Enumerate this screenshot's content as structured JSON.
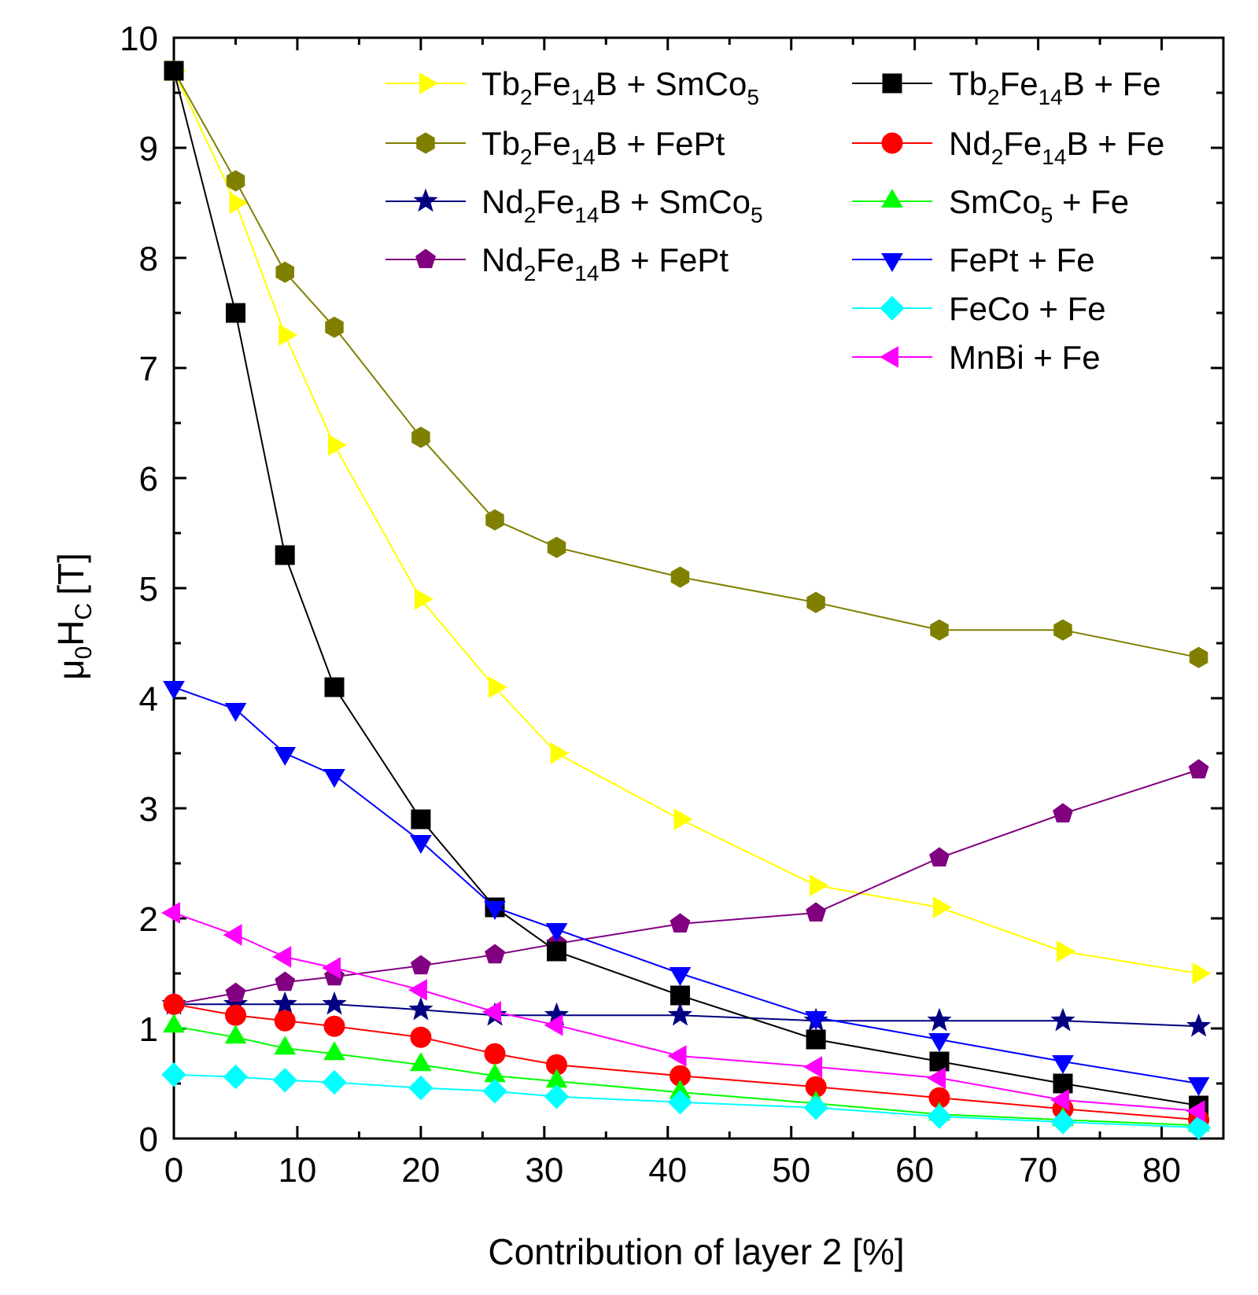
{
  "chart_data": {
    "type": "line",
    "title": "",
    "xlabel": "Contribution of layer 2 [%]",
    "ylabel": {
      "mu": "μ",
      "sub0": "0",
      "H": "H",
      "subC": "C",
      "unit": "[T]"
    },
    "xlim": [
      0,
      85
    ],
    "ylim": [
      0,
      10
    ],
    "x_ticks": [
      0,
      10,
      20,
      30,
      40,
      50,
      60,
      70,
      80
    ],
    "y_ticks": [
      0,
      1,
      2,
      3,
      4,
      5,
      6,
      7,
      8,
      9,
      10
    ],
    "grid": false,
    "legend_position": "top-right",
    "x": [
      0,
      5,
      9,
      13,
      20,
      26,
      31,
      41,
      52,
      62,
      72,
      83
    ],
    "series": [
      {
        "name": "Tb2Fe14B + SmCo5",
        "label_parts": [
          [
            "Tb",
            ""
          ],
          [
            "2",
            "sub"
          ],
          [
            "Fe",
            ""
          ],
          [
            "14",
            "sub"
          ],
          [
            "B + SmCo",
            ""
          ],
          [
            "5",
            "sub"
          ]
        ],
        "color": "#ffff00",
        "marker": "triangle-right",
        "values": [
          9.7,
          8.5,
          7.3,
          6.3,
          4.9,
          4.1,
          3.5,
          2.9,
          2.3,
          2.1,
          1.7,
          1.5
        ]
      },
      {
        "name": "Tb2Fe14B + FePt",
        "label_parts": [
          [
            "Tb",
            ""
          ],
          [
            "2",
            "sub"
          ],
          [
            "Fe",
            ""
          ],
          [
            "14",
            "sub"
          ],
          [
            "B + FePt",
            ""
          ]
        ],
        "color": "#808000",
        "marker": "hexagon",
        "values": [
          9.7,
          8.7,
          7.87,
          7.37,
          6.37,
          5.62,
          5.37,
          5.1,
          4.87,
          4.62,
          4.62,
          4.37
        ]
      },
      {
        "name": "Nd2Fe14B + SmCo5",
        "label_parts": [
          [
            "Nd",
            ""
          ],
          [
            "2",
            "sub"
          ],
          [
            "Fe",
            ""
          ],
          [
            "14",
            "sub"
          ],
          [
            "B + SmCo",
            ""
          ],
          [
            "5",
            "sub"
          ]
        ],
        "color": "#000080",
        "marker": "star",
        "values": [
          1.22,
          1.22,
          1.22,
          1.22,
          1.17,
          1.12,
          1.12,
          1.12,
          1.07,
          1.07,
          1.07,
          1.02
        ]
      },
      {
        "name": "Nd2Fe14B + FePt",
        "label_parts": [
          [
            "Nd",
            ""
          ],
          [
            "2",
            "sub"
          ],
          [
            "Fe",
            ""
          ],
          [
            "14",
            "sub"
          ],
          [
            "B + FePt",
            ""
          ]
        ],
        "color": "#800080",
        "marker": "pentagon",
        "values": [
          1.22,
          1.32,
          1.42,
          1.47,
          1.57,
          1.67,
          1.77,
          1.95,
          2.05,
          2.55,
          2.95,
          3.35
        ]
      },
      {
        "name": "Tb2Fe14B + Fe",
        "label_parts": [
          [
            "Tb",
            ""
          ],
          [
            "2",
            "sub"
          ],
          [
            "Fe",
            ""
          ],
          [
            "14",
            "sub"
          ],
          [
            "B + Fe",
            ""
          ]
        ],
        "color": "#000000",
        "marker": "square",
        "values": [
          9.7,
          7.5,
          5.3,
          4.1,
          2.9,
          2.1,
          1.7,
          1.3,
          0.9,
          0.7,
          0.5,
          0.3
        ]
      },
      {
        "name": "Nd2Fe14B + Fe",
        "label_parts": [
          [
            "Nd",
            ""
          ],
          [
            "2",
            "sub"
          ],
          [
            "Fe",
            ""
          ],
          [
            "14",
            "sub"
          ],
          [
            "B + Fe",
            ""
          ]
        ],
        "color": "#ff0000",
        "marker": "circle",
        "values": [
          1.22,
          1.12,
          1.07,
          1.02,
          0.92,
          0.77,
          0.67,
          0.57,
          0.47,
          0.37,
          0.27,
          0.17
        ]
      },
      {
        "name": "SmCo5 + Fe",
        "label_parts": [
          [
            "SmCo",
            ""
          ],
          [
            "5",
            "sub"
          ],
          [
            " + Fe",
            ""
          ]
        ],
        "color": "#00ff00",
        "marker": "triangle-up",
        "values": [
          1.02,
          0.92,
          0.82,
          0.77,
          0.67,
          0.57,
          0.52,
          0.42,
          0.32,
          0.22,
          0.17,
          0.12
        ]
      },
      {
        "name": "FePt + Fe",
        "label_parts": [
          [
            "FePt + Fe",
            ""
          ]
        ],
        "color": "#0000ff",
        "marker": "triangle-down",
        "values": [
          4.1,
          3.9,
          3.5,
          3.3,
          2.7,
          2.1,
          1.9,
          1.5,
          1.1,
          0.9,
          0.7,
          0.5
        ]
      },
      {
        "name": "FeCo + Fe",
        "label_parts": [
          [
            "FeCo + Fe",
            ""
          ]
        ],
        "color": "#00ffff",
        "marker": "diamond",
        "values": [
          0.58,
          0.56,
          0.53,
          0.51,
          0.46,
          0.43,
          0.38,
          0.33,
          0.28,
          0.2,
          0.15,
          0.1
        ]
      },
      {
        "name": "MnBi + Fe",
        "label_parts": [
          [
            "MnBi + Fe",
            ""
          ]
        ],
        "color": "#ff00ff",
        "marker": "triangle-left",
        "values": [
          2.05,
          1.85,
          1.65,
          1.55,
          1.35,
          1.15,
          1.03,
          0.75,
          0.65,
          0.55,
          0.35,
          0.25
        ]
      }
    ]
  }
}
